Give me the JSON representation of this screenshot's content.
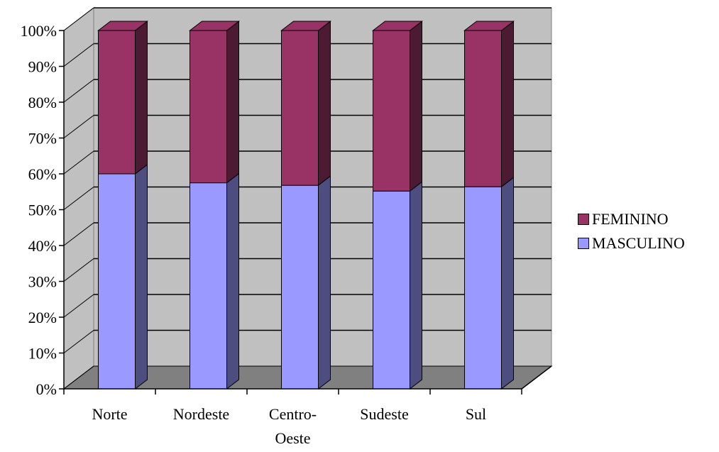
{
  "chart_data": {
    "type": "bar",
    "stacked": true,
    "percent_stacked": true,
    "three_d": true,
    "categories": [
      "Norte",
      "Nordeste",
      "Centro-Oeste",
      "Sudeste",
      "Sul"
    ],
    "category_labels": [
      [
        "Norte"
      ],
      [
        "Nordeste"
      ],
      [
        "Centro-",
        "Oeste"
      ],
      [
        "Sudeste"
      ],
      [
        "Sul"
      ]
    ],
    "series": [
      {
        "name": "MASCULINO",
        "values": [
          60,
          57.5,
          56.8,
          55.2,
          56.4
        ],
        "color": "#9999ff",
        "side_color": "#4d4d80"
      },
      {
        "name": "FEMININO",
        "values": [
          40,
          42.5,
          43.2,
          44.8,
          43.6
        ],
        "color": "#993366",
        "side_color": "#4d1a33"
      }
    ],
    "ylim": [
      0,
      100
    ],
    "yticks": [
      "0%",
      "10%",
      "20%",
      "30%",
      "40%",
      "50%",
      "60%",
      "70%",
      "80%",
      "90%",
      "100%"
    ],
    "grid": true,
    "legend_position": "right",
    "wall_color": "#c0c0c0",
    "floor_color": "#808080",
    "title": "",
    "xlabel": "",
    "ylabel": ""
  },
  "legend": {
    "items": [
      {
        "label": "FEMININO",
        "color": "#993366"
      },
      {
        "label": "MASCULINO",
        "color": "#9999ff"
      }
    ]
  }
}
